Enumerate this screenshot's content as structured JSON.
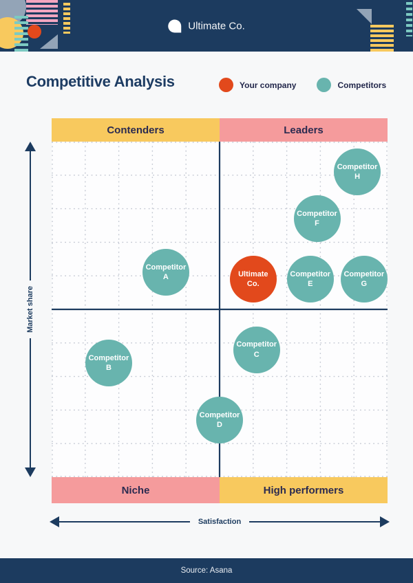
{
  "header": {
    "brand": "Ultimate Co.",
    "logo_icon": "speech-bubble-icon"
  },
  "title": "Competitive Analysis",
  "legend": [
    {
      "label": "Your company",
      "color": "#e2491c"
    },
    {
      "label": "Competitors",
      "color": "#68b4ae"
    }
  ],
  "quadrants": {
    "top_left": "Contenders",
    "top_right": "Leaders",
    "bottom_left": "Niche",
    "bottom_right": "High performers"
  },
  "axes": {
    "y_label": "Market share",
    "x_label": "Satisfaction"
  },
  "footer": {
    "source": "Source: Asana"
  },
  "colors": {
    "navy": "#1c3b5f",
    "yellow": "#f8c95e",
    "pink": "#f59b9c",
    "teal": "#68b4ae",
    "orange": "#e2491c",
    "grid": "#c3c8d2"
  },
  "chart_data": {
    "type": "scatter",
    "title": "Competitive Analysis",
    "xlabel": "Satisfaction",
    "ylabel": "Market share",
    "xlim": [
      0,
      10
    ],
    "ylim": [
      0,
      10
    ],
    "grid": "dotted",
    "legend_position": "top-right",
    "series": [
      {
        "name": "Your company",
        "color": "#e2491c",
        "points": [
          {
            "label": "Ultimate Co.",
            "lines": [
              "Ultimate",
              "Co."
            ],
            "x": 6.0,
            "y": 5.9
          }
        ]
      },
      {
        "name": "Competitors",
        "color": "#68b4ae",
        "points": [
          {
            "label": "Competitor A",
            "lines": [
              "Competitor",
              "A"
            ],
            "x": 3.4,
            "y": 6.1
          },
          {
            "label": "Competitor B",
            "lines": [
              "Competitor",
              "B"
            ],
            "x": 1.7,
            "y": 3.4
          },
          {
            "label": "Competitor C",
            "lines": [
              "Competitor",
              "C"
            ],
            "x": 6.1,
            "y": 3.8
          },
          {
            "label": "Competitor D",
            "lines": [
              "Competitor",
              "D"
            ],
            "x": 5.0,
            "y": 1.7
          },
          {
            "label": "Competitor E",
            "lines": [
              "Competitor",
              "E"
            ],
            "x": 7.7,
            "y": 5.9
          },
          {
            "label": "Competitor F",
            "lines": [
              "Competitor",
              "F"
            ],
            "x": 7.9,
            "y": 7.7
          },
          {
            "label": "Competitor G",
            "lines": [
              "Competitor",
              "G"
            ],
            "x": 9.3,
            "y": 5.9
          },
          {
            "label": "Competitor H",
            "lines": [
              "Competitor",
              "H"
            ],
            "x": 9.1,
            "y": 9.1
          }
        ]
      }
    ]
  }
}
